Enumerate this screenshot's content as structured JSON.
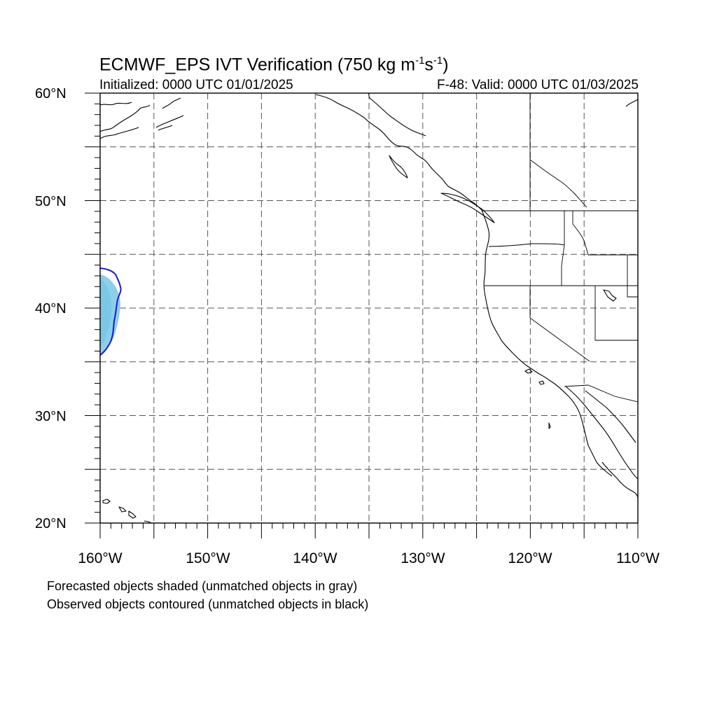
{
  "title": {
    "prefix": "ECMWF_EPS IVT Verification (750 kg m",
    "exp1": "-1",
    "mid": "s",
    "exp2": "-1",
    "suffix": ")"
  },
  "subtitle_left": "Initialized: 0000 UTC 01/01/2025",
  "subtitle_right": "F-48: Valid: 0000 UTC 01/03/2025",
  "lat_labels": [
    "60°N",
    "50°N",
    "40°N",
    "30°N",
    "20°N"
  ],
  "lon_labels": [
    "160°W",
    "150°W",
    "140°W",
    "130°W",
    "120°W",
    "110°W"
  ],
  "notes": [
    "Forecasted objects shaded (unmatched objects in gray)",
    "Observed objects contoured (unmatched objects in black)"
  ],
  "map": {
    "lon_range": [
      -160,
      -110
    ],
    "lat_range": [
      20,
      60
    ],
    "gridline_interval_deg": 5,
    "gridline_style": "dashed",
    "forecast_fill_color": "#8ecfe8",
    "forecast_fill_core_color": "#6ec2e4",
    "observed_contour_color": "#1a1adb",
    "coastline_color": "#000000"
  }
}
